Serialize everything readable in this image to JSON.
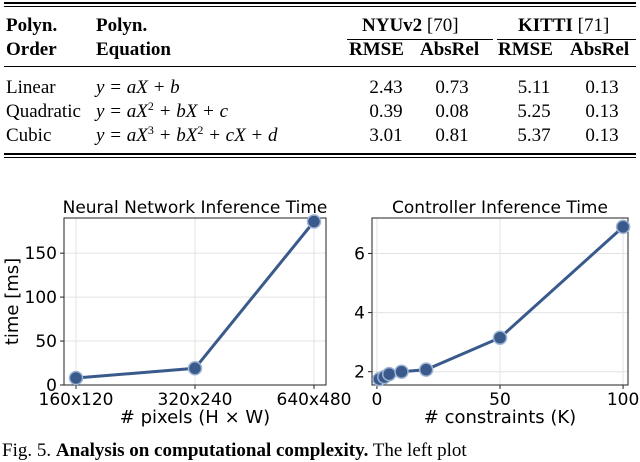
{
  "table": {
    "headers": {
      "order_line1": "Polyn.",
      "order_line2": "Order",
      "eq_line1": "Polyn.",
      "eq_line2": "Equation",
      "nyu": "NYUv2",
      "nyu_ref": "[70]",
      "kitti": "KITTI",
      "kitti_ref": "[71]",
      "rmse": "RMSE",
      "absrel": "AbsRel"
    },
    "rows": [
      {
        "order": "Linear",
        "eq_main": "y = aX + b",
        "nyu_rmse": "2.43",
        "nyu_absrel": "0.73",
        "kitti_rmse": "5.11",
        "kitti_absrel": "0.13"
      },
      {
        "order": "Quadratic",
        "eq_a": "y = aX",
        "eq_sup1": "2",
        "eq_b": " + bX + c",
        "nyu_rmse": "0.39",
        "nyu_absrel": "0.08",
        "kitti_rmse": "5.25",
        "kitti_absrel": "0.13"
      },
      {
        "order": "Cubic",
        "eq_a": "y = aX",
        "eq_sup1": "3",
        "eq_b": " + bX",
        "eq_sup2": "2",
        "eq_c": " + cX + d",
        "nyu_rmse": "3.01",
        "nyu_absrel": "0.81",
        "kitti_rmse": "5.37",
        "kitti_absrel": "0.13"
      }
    ]
  },
  "chart_data": [
    {
      "type": "line",
      "title": "Neural Network Inference Time",
      "xlabel": "# pixels (H × W)",
      "ylabel": "time [ms]",
      "categories": [
        "160x120",
        "320x240",
        "640x480"
      ],
      "values": [
        8,
        19,
        186
      ],
      "ylim": [
        0,
        190
      ],
      "yticks": [
        0,
        50,
        100,
        150
      ],
      "grid": true,
      "color": "#3a5a8c"
    },
    {
      "type": "line",
      "title": "Controller Inference Time",
      "xlabel": "# constraints (K)",
      "ylabel": "",
      "x": [
        1,
        3,
        5,
        10,
        20,
        50,
        100
      ],
      "values": [
        1.75,
        1.82,
        1.92,
        2.0,
        2.07,
        3.15,
        6.9
      ],
      "xlim": [
        -2,
        102
      ],
      "ylim": [
        1.55,
        7.2
      ],
      "xticks": [
        0,
        50,
        100
      ],
      "yticks": [
        2,
        4,
        6
      ],
      "grid": true,
      "color": "#3a5a8c"
    }
  ],
  "caption": {
    "prefix": "Fig. 5.",
    "bold": "Analysis on computational complexity.",
    "rest": "The left plot"
  }
}
